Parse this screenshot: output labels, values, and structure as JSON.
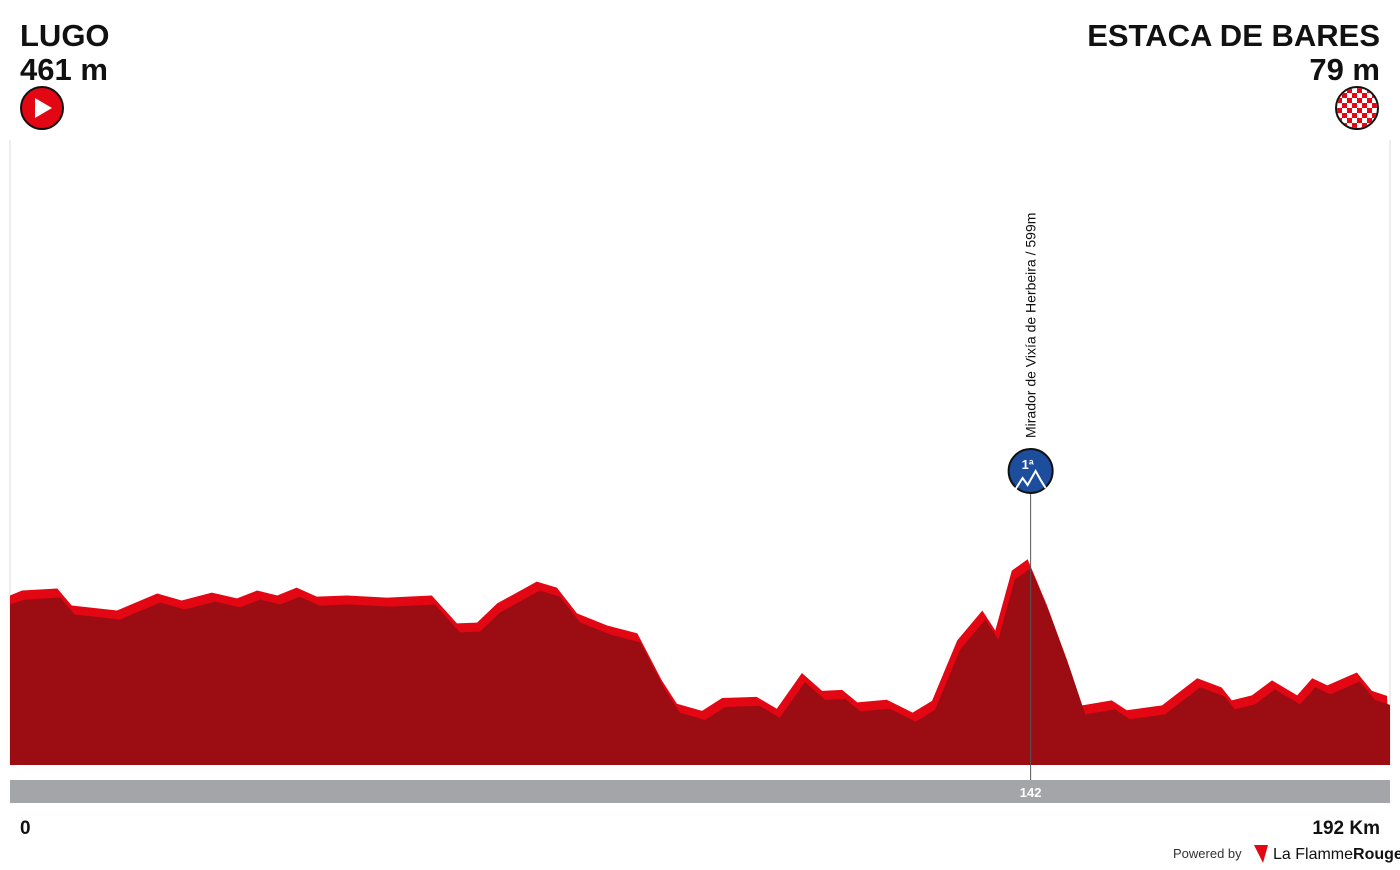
{
  "chart_data": {
    "type": "area",
    "start": {
      "name": "LUGO",
      "elevation": "461 m"
    },
    "finish": {
      "name": "ESTACA DE BARES",
      "elevation": "79 m"
    },
    "x": [
      0,
      2.1,
      7,
      9,
      15.3,
      20.9,
      24.3,
      28.5,
      32,
      34.8,
      37.6,
      40.3,
      43.1,
      47.3,
      52.9,
      59.1,
      62.6,
      65.4,
      68.2,
      73.7,
      76.5,
      79.3,
      83.5,
      87.7,
      91.1,
      93.2,
      96.7,
      99.5,
      104.3,
      107.1,
      110.6,
      113.4,
      116.2,
      118.3,
      122.4,
      126,
      128.7,
      132.2,
      135.7,
      137.5,
      139.8,
      142,
      144.7,
      147.5,
      149.6,
      153.7,
      155.8,
      160.7,
      165.6,
      169,
      170.4,
      173.2,
      176,
      179.5,
      181.6,
      183.7,
      187.8,
      189.9,
      192
    ],
    "values": [
      461,
      480,
      488,
      423,
      404,
      469,
      442,
      472,
      450,
      480,
      461,
      491,
      457,
      461,
      453,
      461,
      355,
      358,
      431,
      514,
      491,
      393,
      347,
      317,
      138,
      49,
      22,
      71,
      75,
      30,
      166,
      98,
      102,
      54,
      64,
      15,
      60,
      290,
      404,
      328,
      556,
      599,
      423,
      214,
      43,
      62,
      24,
      43,
      146,
      111,
      62,
      81,
      138,
      81,
      146,
      119,
      168,
      98,
      79
    ],
    "color": "#9b0d12",
    "xlim": [
      0,
      192
    ],
    "ylim": [
      -150,
      2230
    ],
    "xticks": [
      {
        "value": 0,
        "label": "0"
      },
      {
        "value": 192,
        "label": "192 Km"
      }
    ],
    "climbs": [
      {
        "name": "Mirador de Vixía de Herbeira / 599m",
        "km": 142,
        "km_label": "142",
        "category": "1ª"
      }
    ],
    "footer": {
      "powered": "Powered by",
      "brand_a": "La Flamme",
      "brand_b": "Rouge"
    }
  }
}
